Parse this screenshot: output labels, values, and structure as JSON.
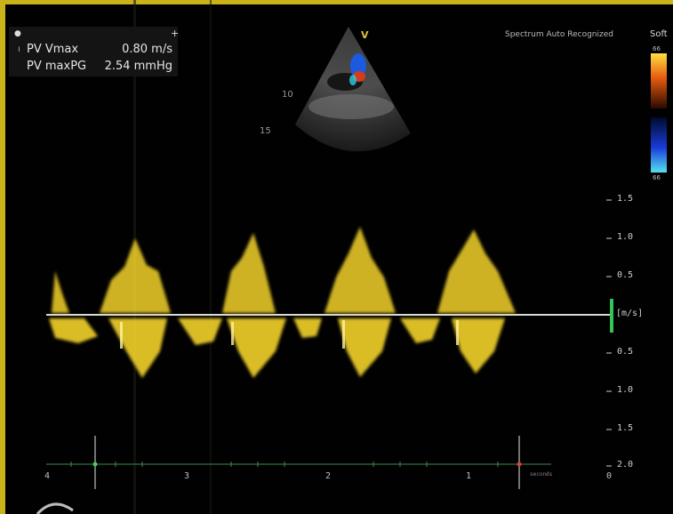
{
  "measurements": {
    "rows": [
      {
        "label": "PV Vmax",
        "value": "0.80 m/s"
      },
      {
        "label": "PV maxPG",
        "value": "2.54 mmHg"
      }
    ]
  },
  "header": {
    "auto_recognized": "Spectrum Auto Recognized",
    "preset": "Soft",
    "marker": "V"
  },
  "color_bar": {
    "top_label": "66",
    "bottom_label": "66"
  },
  "sector_depth_labels": [
    "10",
    "15"
  ],
  "velocity_scale": {
    "unit_label": "[m/s]",
    "ticks": [
      "1.5",
      "1.0",
      "0.5",
      "0.5",
      "1.0",
      "1.5",
      "2.0"
    ]
  },
  "time_scale": {
    "ticks": [
      "4",
      "3",
      "2",
      "1",
      "0"
    ],
    "unit_label": "seconds"
  },
  "colors": {
    "frame_border": "#c9b21a",
    "doppler_signal": "#f2d22a",
    "baseline": "#d9d9d9",
    "scale_indicator": "#35c45a"
  }
}
